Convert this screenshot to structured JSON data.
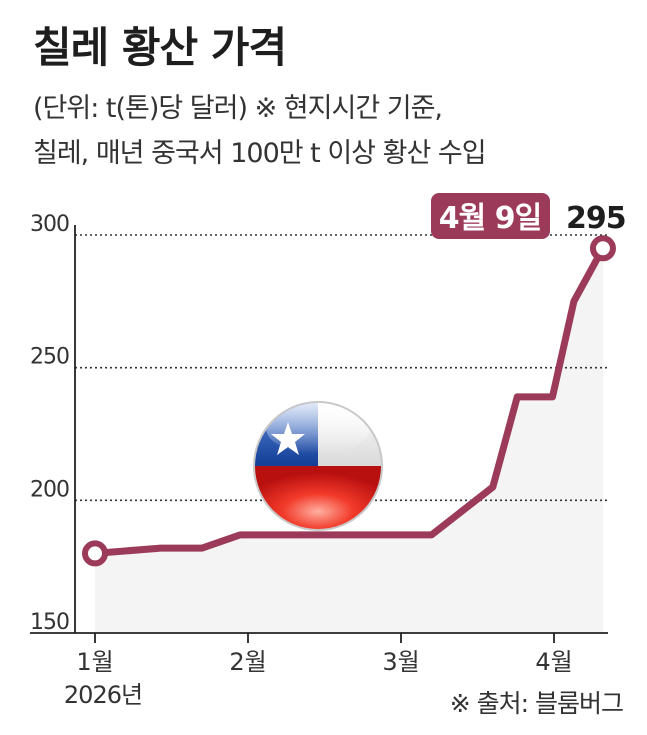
{
  "title": "칠레 황산 가격",
  "subtitle_line1": "(단위: t(톤)당 달러) ※ 현지시간 기준,",
  "subtitle_line2": "칠레, 매년 중국서 100만 t 이상 황산 수입",
  "source": "※ 출처: 블룸버그",
  "colors": {
    "line": "#9c3a5a",
    "callout": "#9c3a5a",
    "area": "#f4f4f4"
  },
  "flag_icon": "chile-flag-icon",
  "chart_data": {
    "type": "line",
    "title": "칠레 황산 가격",
    "xlabel": "",
    "ylabel": "",
    "ylim": [
      150,
      300
    ],
    "yticks": [
      150,
      200,
      250,
      300
    ],
    "ytick_labels": [
      "150",
      "200",
      "250",
      "300"
    ],
    "grid": true,
    "x_ticks": [
      {
        "label": "1월",
        "sublabel": "2026년",
        "x": 0
      },
      {
        "label": "2월",
        "sublabel": "",
        "x": 1
      },
      {
        "label": "3월",
        "sublabel": "",
        "x": 2
      },
      {
        "label": "4월",
        "sublabel": "",
        "x": 3
      }
    ],
    "points": [
      {
        "x": 0.0,
        "y": 180
      },
      {
        "x": 0.43,
        "y": 182
      },
      {
        "x": 0.7,
        "y": 182
      },
      {
        "x": 0.95,
        "y": 187
      },
      {
        "x": 1.3,
        "y": 187
      },
      {
        "x": 1.8,
        "y": 187
      },
      {
        "x": 2.2,
        "y": 187
      },
      {
        "x": 2.6,
        "y": 205
      },
      {
        "x": 2.76,
        "y": 239
      },
      {
        "x": 2.99,
        "y": 239
      },
      {
        "x": 3.13,
        "y": 275
      },
      {
        "x": 3.32,
        "y": 295
      }
    ],
    "callout": {
      "date": "4월 9일",
      "value": "295"
    }
  }
}
